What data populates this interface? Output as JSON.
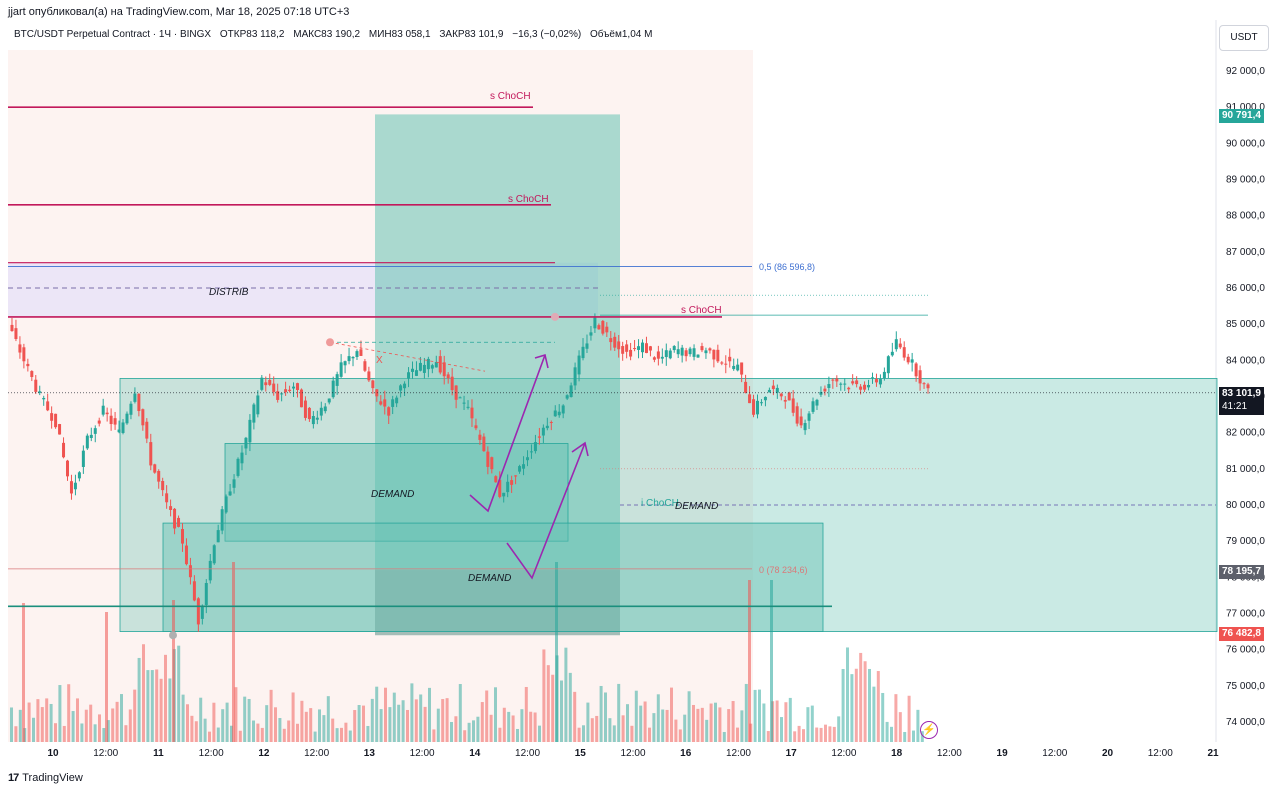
{
  "header": {
    "caption": "jjart опубликовал(а) на TradingView.com, Mar 18, 2025 07:18 UTC+3",
    "symbol": "BTC/USDT Perpetual Contract · 1Ч · BINGX",
    "open": "ОТКР83 118,2",
    "high": "МАКС83 190,2",
    "low": "МИН83 058,1",
    "close": "ЗАКР83 101,9",
    "change": "−16,3 (−0,02%)",
    "volume": "Объём1,04 M"
  },
  "toolbar": {
    "currency_label": "USDT"
  },
  "price_tags": {
    "top": "90 791,4",
    "current": "83 101,9",
    "countdown": "41:21",
    "mid": "78 195,7",
    "bottom": "76 482,8"
  },
  "footer": {
    "brand": "TradingView",
    "logo": "17"
  },
  "colors": {
    "up": "#26a69a",
    "down": "#ef5350",
    "choch": "#c2185b",
    "fib": "#3d6fd1",
    "zone": "#66c2b3",
    "arrow": "#9c27b0"
  },
  "chart_data": {
    "type": "candlestick",
    "ylim": [
      73500,
      93000
    ],
    "y_ticks": [
      "92 000,0",
      "91 000,0",
      "90 000,0",
      "89 000,0",
      "88 000,0",
      "87 000,0",
      "86 000,0",
      "85 000,0",
      "84 000,0",
      "83 000,0",
      "82 000,0",
      "81 000,0",
      "80 000,0",
      "79 000,0",
      "78 000,0",
      "77 000,0",
      "76 000,0",
      "75 000,0",
      "74 000,0"
    ],
    "x_ticks": [
      "10",
      "12:00",
      "11",
      "12:00",
      "12",
      "12:00",
      "13",
      "12:00",
      "14",
      "12:00",
      "15",
      "12:00",
      "16",
      "12:00",
      "17",
      "12:00",
      "18",
      "12:00",
      "19",
      "12:00",
      "20",
      "12:00",
      "21"
    ],
    "price_path": [
      [
        0,
        85000
      ],
      [
        2,
        84000
      ],
      [
        4,
        83000
      ],
      [
        6,
        82300
      ],
      [
        8,
        80300
      ],
      [
        10,
        81800
      ],
      [
        12,
        82600
      ],
      [
        14,
        82000
      ],
      [
        16,
        83200
      ],
      [
        18,
        81200
      ],
      [
        20,
        80000
      ],
      [
        22,
        79000
      ],
      [
        24,
        76800
      ],
      [
        26,
        79000
      ],
      [
        28,
        80500
      ],
      [
        30,
        81800
      ],
      [
        32,
        83500
      ],
      [
        34,
        83000
      ],
      [
        36,
        83300
      ],
      [
        38,
        82300
      ],
      [
        40,
        82800
      ],
      [
        42,
        83800
      ],
      [
        44,
        84300
      ],
      [
        46,
        83100
      ],
      [
        48,
        82600
      ],
      [
        50,
        83500
      ],
      [
        52,
        83800
      ],
      [
        54,
        84000
      ],
      [
        56,
        83200
      ],
      [
        58,
        82600
      ],
      [
        60,
        81500
      ],
      [
        62,
        80300
      ],
      [
        64,
        80800
      ],
      [
        66,
        81600
      ],
      [
        68,
        82300
      ],
      [
        70,
        82800
      ],
      [
        72,
        84000
      ],
      [
        74,
        85100
      ],
      [
        76,
        84600
      ],
      [
        78,
        84200
      ],
      [
        80,
        84400
      ],
      [
        82,
        84000
      ],
      [
        84,
        84300
      ],
      [
        86,
        84200
      ],
      [
        88,
        84300
      ],
      [
        90,
        84000
      ],
      [
        92,
        83800
      ],
      [
        94,
        82600
      ],
      [
        96,
        83200
      ],
      [
        98,
        83000
      ],
      [
        100,
        82200
      ],
      [
        102,
        83000
      ],
      [
        104,
        83500
      ],
      [
        106,
        83300
      ],
      [
        108,
        83300
      ],
      [
        110,
        83500
      ],
      [
        112,
        84500
      ],
      [
        114,
        83900
      ],
      [
        116,
        83101.9
      ]
    ],
    "annotations": [
      {
        "label": "s ChoCH",
        "price": 91000
      },
      {
        "label": "s ChoCH",
        "price": 88300
      },
      {
        "label": "s ChoCH",
        "price": 85200
      },
      {
        "label": "DISTRIB",
        "price": 86000
      },
      {
        "label": "DEMAND",
        "price": 80300
      },
      {
        "label": "DEMAND",
        "price": 78000
      },
      {
        "label": "i ChoCH",
        "price": 80050
      },
      {
        "label": "DEMAND",
        "price": 80050
      },
      {
        "label": "X",
        "price": 84200
      }
    ],
    "fib_levels": [
      {
        "label": "0,5 (86 596,8)",
        "price": 86596.8
      },
      {
        "label": "0 (78 234,6)",
        "price": 78234.6
      }
    ]
  }
}
